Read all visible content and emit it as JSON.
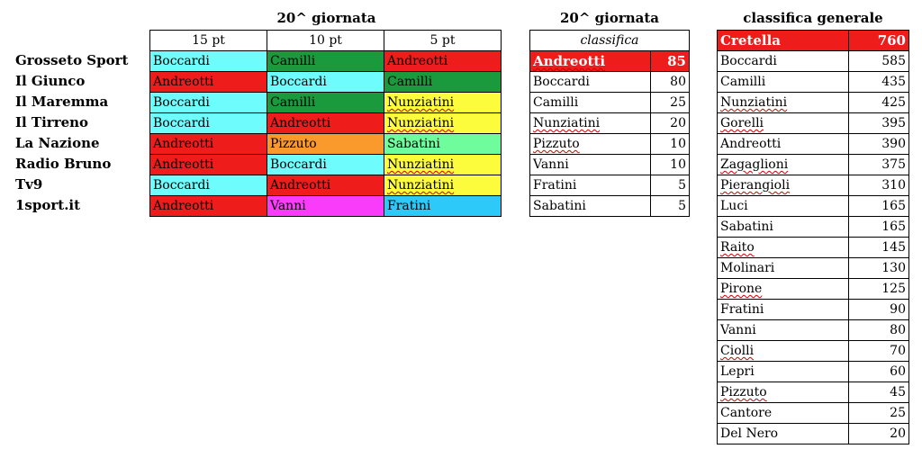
{
  "votes": {
    "title": "20^ giornata",
    "headers": [
      "15 pt",
      "10 pt",
      "5 pt"
    ],
    "rows": [
      {
        "outlet": "Grosseto Sport",
        "cells": [
          {
            "name": "Boccardi",
            "color": "#6ffcfc",
            "sq": false
          },
          {
            "name": "Camilli",
            "color": "#1a9a3c",
            "sq": false
          },
          {
            "name": "Andreotti",
            "color": "#ef1c1c",
            "sq": false
          }
        ]
      },
      {
        "outlet": "Il Giunco",
        "cells": [
          {
            "name": "Andreotti",
            "color": "#ef1c1c",
            "sq": false
          },
          {
            "name": "Boccardi",
            "color": "#6ffcfc",
            "sq": false
          },
          {
            "name": "Camilli",
            "color": "#1a9a3c",
            "sq": false
          }
        ]
      },
      {
        "outlet": "Il Maremma",
        "cells": [
          {
            "name": "Boccardi",
            "color": "#6ffcfc",
            "sq": false
          },
          {
            "name": "Camilli",
            "color": "#1a9a3c",
            "sq": false
          },
          {
            "name": "Nunziatini",
            "color": "#fdfc3c",
            "sq": true
          }
        ]
      },
      {
        "outlet": "Il Tirreno",
        "cells": [
          {
            "name": "Boccardi",
            "color": "#6ffcfc",
            "sq": false
          },
          {
            "name": "Andreotti",
            "color": "#ef1c1c",
            "sq": false
          },
          {
            "name": "Nunziatini",
            "color": "#fdfc3c",
            "sq": true
          }
        ]
      },
      {
        "outlet": "La Nazione",
        "cells": [
          {
            "name": "Andreotti",
            "color": "#ef1c1c",
            "sq": false
          },
          {
            "name": "Pizzuto",
            "color": "#fa9a2c",
            "sq": false
          },
          {
            "name": "Sabatini",
            "color": "#6ffc9c",
            "sq": false
          }
        ]
      },
      {
        "outlet": "Radio Bruno",
        "cells": [
          {
            "name": "Andreotti",
            "color": "#ef1c1c",
            "sq": false
          },
          {
            "name": "Boccardi",
            "color": "#6ffcfc",
            "sq": false
          },
          {
            "name": "Nunziatini",
            "color": "#fdfc3c",
            "sq": true
          }
        ]
      },
      {
        "outlet": "Tv9",
        "cells": [
          {
            "name": "Boccardi",
            "color": "#6ffcfc",
            "sq": false
          },
          {
            "name": "Andreotti",
            "color": "#ef1c1c",
            "sq": false
          },
          {
            "name": "Nunziatini",
            "color": "#fdfc3c",
            "sq": true
          }
        ]
      },
      {
        "outlet": "1sport.it",
        "cells": [
          {
            "name": "Andreotti",
            "color": "#ef1c1c",
            "sq": false
          },
          {
            "name": "Vanni",
            "color": "#f93cf9",
            "sq": false
          },
          {
            "name": "Fratini",
            "color": "#2cc9f9",
            "sq": false
          }
        ]
      }
    ]
  },
  "round": {
    "title": "20^ giornata",
    "subtitle": "classifica",
    "rows": [
      {
        "name": "Andreotti",
        "score": "85",
        "sq": true
      },
      {
        "name": "Boccardi",
        "score": "80",
        "sq": false
      },
      {
        "name": "Camilli",
        "score": "25",
        "sq": false
      },
      {
        "name": "Nunziatini",
        "score": "20",
        "sq": true
      },
      {
        "name": "Pizzuto",
        "score": "10",
        "sq": true
      },
      {
        "name": "Vanni",
        "score": "10",
        "sq": false
      },
      {
        "name": "Fratini",
        "score": "5",
        "sq": false
      },
      {
        "name": "Sabatini",
        "score": "5",
        "sq": false
      }
    ]
  },
  "general": {
    "title": "classifica generale",
    "rows": [
      {
        "name": "Cretella",
        "score": "760",
        "sq": false
      },
      {
        "name": "Boccardi",
        "score": "585",
        "sq": false
      },
      {
        "name": "Camilli",
        "score": "435",
        "sq": false
      },
      {
        "name": "Nunziatini",
        "score": "425",
        "sq": true
      },
      {
        "name": "Gorelli",
        "score": "395",
        "sq": true
      },
      {
        "name": "Andreotti",
        "score": "390",
        "sq": false
      },
      {
        "name": "Zagaglioni",
        "score": "375",
        "sq": true
      },
      {
        "name": "Pierangioli",
        "score": "310",
        "sq": true
      },
      {
        "name": "Luci",
        "score": "165",
        "sq": false
      },
      {
        "name": "Sabatini",
        "score": "165",
        "sq": false
      },
      {
        "name": "Raito",
        "score": "145",
        "sq": true
      },
      {
        "name": "Molinari",
        "score": "130",
        "sq": false
      },
      {
        "name": "Pirone",
        "score": "125",
        "sq": true
      },
      {
        "name": "Fratini",
        "score": "90",
        "sq": false
      },
      {
        "name": "Vanni",
        "score": "80",
        "sq": false
      },
      {
        "name": "Ciolli",
        "score": "70",
        "sq": true
      },
      {
        "name": "Lepri",
        "score": "60",
        "sq": false
      },
      {
        "name": "Pizzuto",
        "score": "45",
        "sq": true
      },
      {
        "name": "Cantore",
        "score": "25",
        "sq": false
      },
      {
        "name": "Del Nero",
        "score": "20",
        "sq": false
      }
    ]
  },
  "colors": {
    "highlight": "#ef1c1c"
  }
}
